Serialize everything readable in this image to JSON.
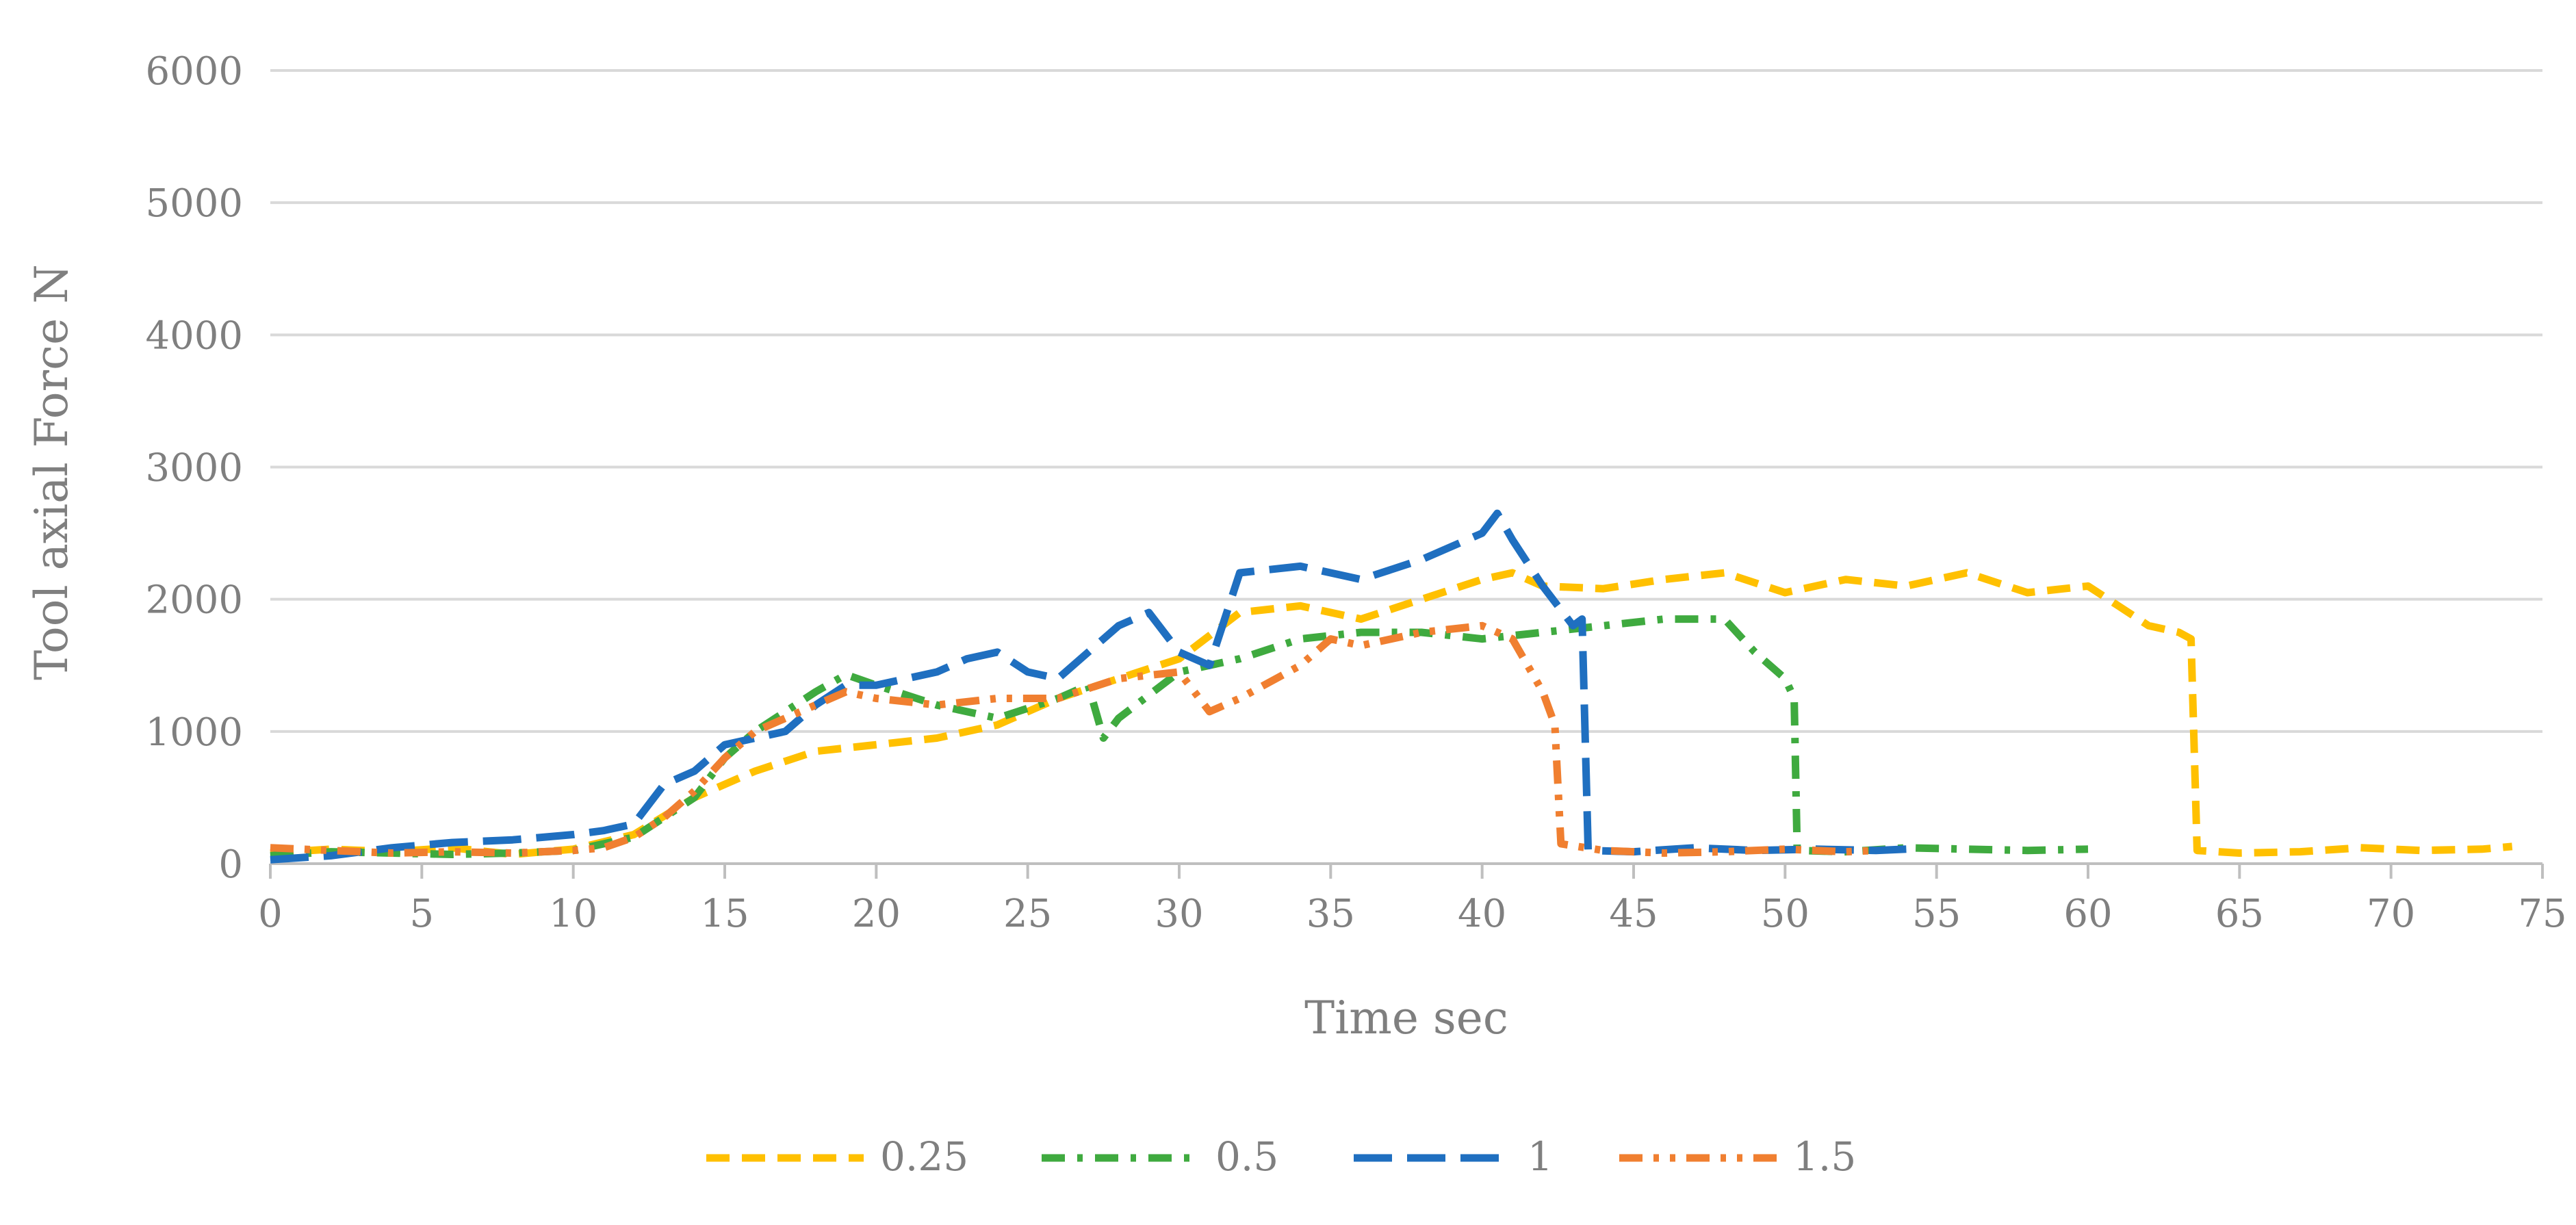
{
  "chart_data": {
    "type": "line",
    "title": "",
    "xlabel": "Time sec",
    "ylabel": "Tool axial Force N",
    "xlim": [
      0,
      75
    ],
    "ylim": [
      0,
      6000
    ],
    "xticks": [
      "0",
      "5",
      "10",
      "15",
      "20",
      "25",
      "30",
      "35",
      "40",
      "45",
      "50",
      "55",
      "60",
      "65",
      "70",
      "75"
    ],
    "yticks": [
      "0",
      "1000",
      "2000",
      "3000",
      "4000",
      "5000",
      "6000"
    ],
    "grid": "horizontal",
    "legend_position": "bottom",
    "series": [
      {
        "name": "0.25",
        "color": "#FFC000",
        "dash": "dashed",
        "points": [
          [
            0,
            80
          ],
          [
            2,
            110
          ],
          [
            4,
            90
          ],
          [
            6,
            120
          ],
          [
            8,
            70
          ],
          [
            10,
            110
          ],
          [
            12,
            220
          ],
          [
            14,
            500
          ],
          [
            16,
            700
          ],
          [
            18,
            850
          ],
          [
            20,
            900
          ],
          [
            22,
            950
          ],
          [
            24,
            1050
          ],
          [
            26,
            1250
          ],
          [
            28,
            1400
          ],
          [
            30,
            1550
          ],
          [
            32,
            1900
          ],
          [
            34,
            1950
          ],
          [
            36,
            1850
          ],
          [
            38,
            2000
          ],
          [
            40,
            2150
          ],
          [
            41,
            2200
          ],
          [
            42,
            2100
          ],
          [
            44,
            2080
          ],
          [
            46,
            2150
          ],
          [
            48,
            2200
          ],
          [
            50,
            2050
          ],
          [
            52,
            2150
          ],
          [
            54,
            2100
          ],
          [
            56,
            2200
          ],
          [
            58,
            2050
          ],
          [
            60,
            2100
          ],
          [
            61,
            1950
          ],
          [
            62,
            1800
          ],
          [
            63,
            1750
          ],
          [
            63.4,
            1700
          ],
          [
            63.6,
            100
          ],
          [
            65,
            80
          ],
          [
            67,
            90
          ],
          [
            69,
            120
          ],
          [
            71,
            100
          ],
          [
            73,
            110
          ],
          [
            74,
            130
          ]
        ]
      },
      {
        "name": "0.5",
        "color": "#3FAA3F",
        "dash": "dashdot",
        "points": [
          [
            0,
            60
          ],
          [
            2,
            90
          ],
          [
            4,
            80
          ],
          [
            6,
            70
          ],
          [
            8,
            80
          ],
          [
            10,
            100
          ],
          [
            11,
            150
          ],
          [
            12,
            200
          ],
          [
            13,
            350
          ],
          [
            14,
            500
          ],
          [
            15,
            800
          ],
          [
            16,
            1000
          ],
          [
            17,
            1150
          ],
          [
            18,
            1300
          ],
          [
            19,
            1430
          ],
          [
            20,
            1350
          ],
          [
            22,
            1200
          ],
          [
            24,
            1100
          ],
          [
            26,
            1250
          ],
          [
            27,
            1350
          ],
          [
            27.5,
            950
          ],
          [
            28,
            1100
          ],
          [
            30,
            1450
          ],
          [
            32,
            1550
          ],
          [
            34,
            1700
          ],
          [
            36,
            1750
          ],
          [
            38,
            1750
          ],
          [
            40,
            1700
          ],
          [
            42,
            1750
          ],
          [
            44,
            1800
          ],
          [
            46,
            1850
          ],
          [
            48,
            1850
          ],
          [
            49,
            1600
          ],
          [
            50,
            1400
          ],
          [
            50.3,
            1250
          ],
          [
            50.4,
            100
          ],
          [
            52,
            90
          ],
          [
            54,
            120
          ],
          [
            56,
            110
          ],
          [
            58,
            100
          ],
          [
            60,
            110
          ]
        ]
      },
      {
        "name": "1",
        "color": "#1F6FC0",
        "dash": "longdash",
        "points": [
          [
            0,
            30
          ],
          [
            2,
            60
          ],
          [
            4,
            120
          ],
          [
            6,
            160
          ],
          [
            8,
            180
          ],
          [
            10,
            220
          ],
          [
            11,
            250
          ],
          [
            12,
            300
          ],
          [
            13,
            600
          ],
          [
            14,
            700
          ],
          [
            15,
            900
          ],
          [
            16,
            950
          ],
          [
            17,
            1000
          ],
          [
            18,
            1200
          ],
          [
            19,
            1350
          ],
          [
            20,
            1350
          ],
          [
            21,
            1400
          ],
          [
            22,
            1450
          ],
          [
            23,
            1550
          ],
          [
            24,
            1600
          ],
          [
            25,
            1450
          ],
          [
            26,
            1400
          ],
          [
            27,
            1600
          ],
          [
            28,
            1800
          ],
          [
            29,
            1900
          ],
          [
            30,
            1600
          ],
          [
            31,
            1500
          ],
          [
            32,
            2200
          ],
          [
            34,
            2250
          ],
          [
            36,
            2150
          ],
          [
            38,
            2300
          ],
          [
            40,
            2500
          ],
          [
            40.5,
            2650
          ],
          [
            41,
            2450
          ],
          [
            42,
            2100
          ],
          [
            43,
            1800
          ],
          [
            43.3,
            1850
          ],
          [
            43.5,
            100
          ],
          [
            45,
            90
          ],
          [
            47,
            120
          ],
          [
            49,
            100
          ],
          [
            51,
            110
          ],
          [
            53,
            100
          ],
          [
            54,
            110
          ]
        ]
      },
      {
        "name": "1.5",
        "color": "#F07F30",
        "dash": "dashdotdot",
        "points": [
          [
            0,
            120
          ],
          [
            2,
            100
          ],
          [
            4,
            80
          ],
          [
            6,
            90
          ],
          [
            8,
            80
          ],
          [
            10,
            100
          ],
          [
            11,
            120
          ],
          [
            12,
            200
          ],
          [
            13,
            350
          ],
          [
            14,
            550
          ],
          [
            15,
            800
          ],
          [
            16,
            1000
          ],
          [
            17,
            1100
          ],
          [
            18,
            1200
          ],
          [
            19,
            1300
          ],
          [
            20,
            1250
          ],
          [
            22,
            1200
          ],
          [
            24,
            1250
          ],
          [
            26,
            1250
          ],
          [
            28,
            1400
          ],
          [
            30,
            1450
          ],
          [
            31,
            1150
          ],
          [
            32,
            1250
          ],
          [
            34,
            1500
          ],
          [
            35,
            1700
          ],
          [
            36,
            1650
          ],
          [
            38,
            1750
          ],
          [
            40,
            1800
          ],
          [
            41,
            1700
          ],
          [
            42,
            1300
          ],
          [
            42.4,
            1050
          ],
          [
            42.6,
            150
          ],
          [
            44,
            100
          ],
          [
            46,
            80
          ],
          [
            48,
            90
          ],
          [
            50,
            110
          ],
          [
            52,
            90
          ],
          [
            53,
            100
          ]
        ]
      }
    ]
  }
}
